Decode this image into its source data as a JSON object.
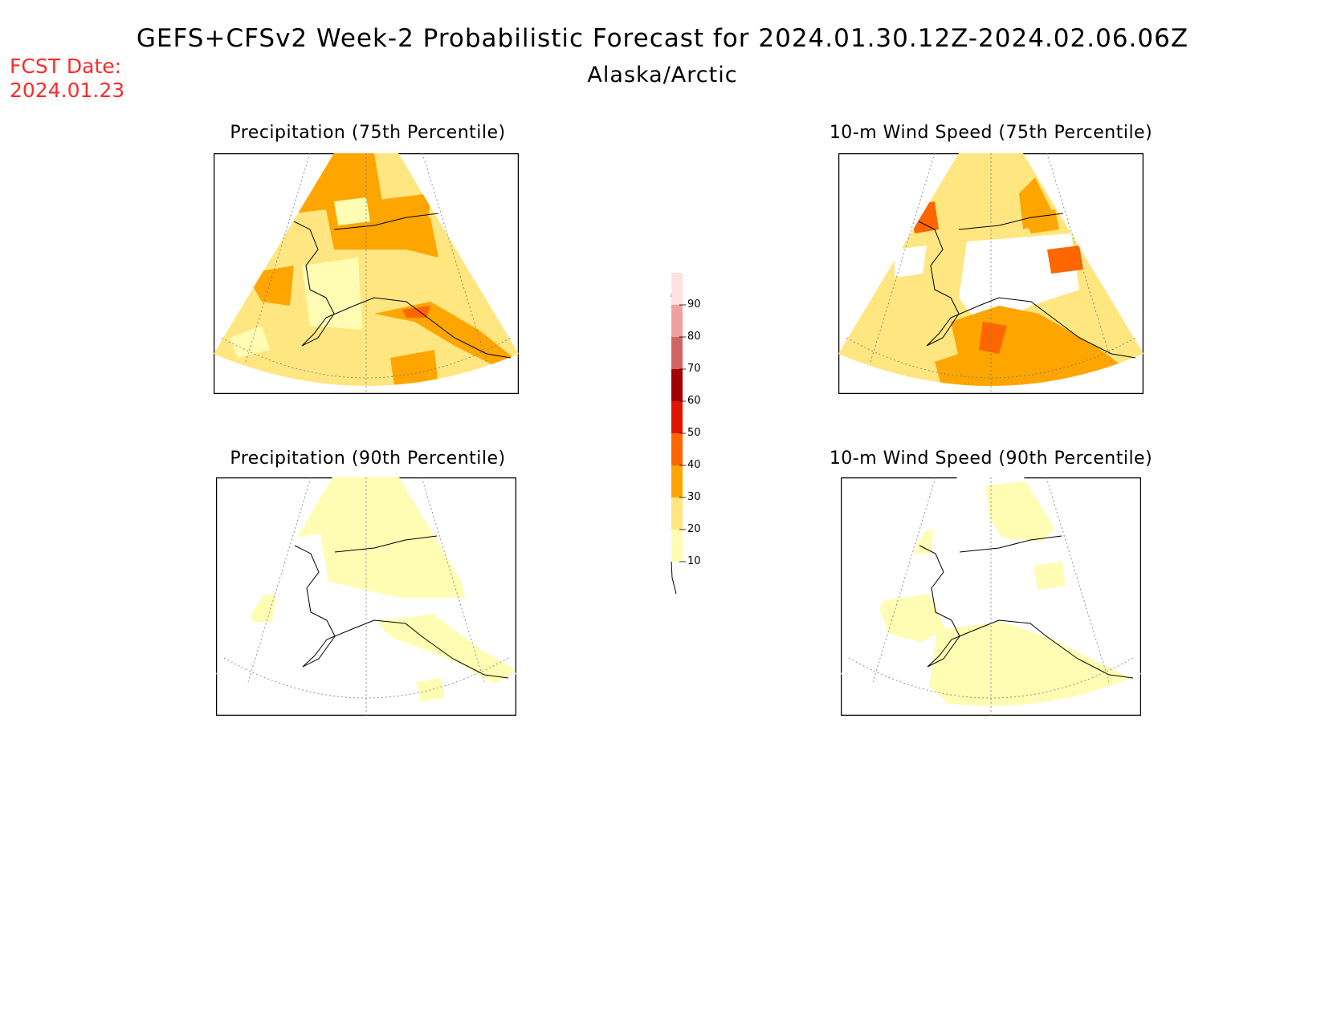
{
  "header": {
    "title": "GEFS+CFSv2 Week-2 Probabilistic Forecast for 2024.01.30.12Z-2024.02.06.06Z",
    "subtitle": "Alaska/Arctic",
    "fcst_label": "FCST Date:",
    "fcst_date": "2024.01.23"
  },
  "panels": [
    {
      "title": "Precipitation (75th Percentile)"
    },
    {
      "title": "10-m Wind Speed (75th Percentile)"
    },
    {
      "title": "Precipitation (90th Percentile)"
    },
    {
      "title": "10-m Wind Speed (90th Percentile)"
    }
  ],
  "colorbar": {
    "levels": [
      "10",
      "20",
      "30",
      "40",
      "50",
      "60",
      "70",
      "80",
      "90"
    ],
    "colors": [
      "#fffcb4",
      "#ffe680",
      "#ffa500",
      "#ff6600",
      "#e01500",
      "#a50000",
      "#d26464",
      "#f0a0a0",
      "#ffe0e0"
    ]
  }
}
